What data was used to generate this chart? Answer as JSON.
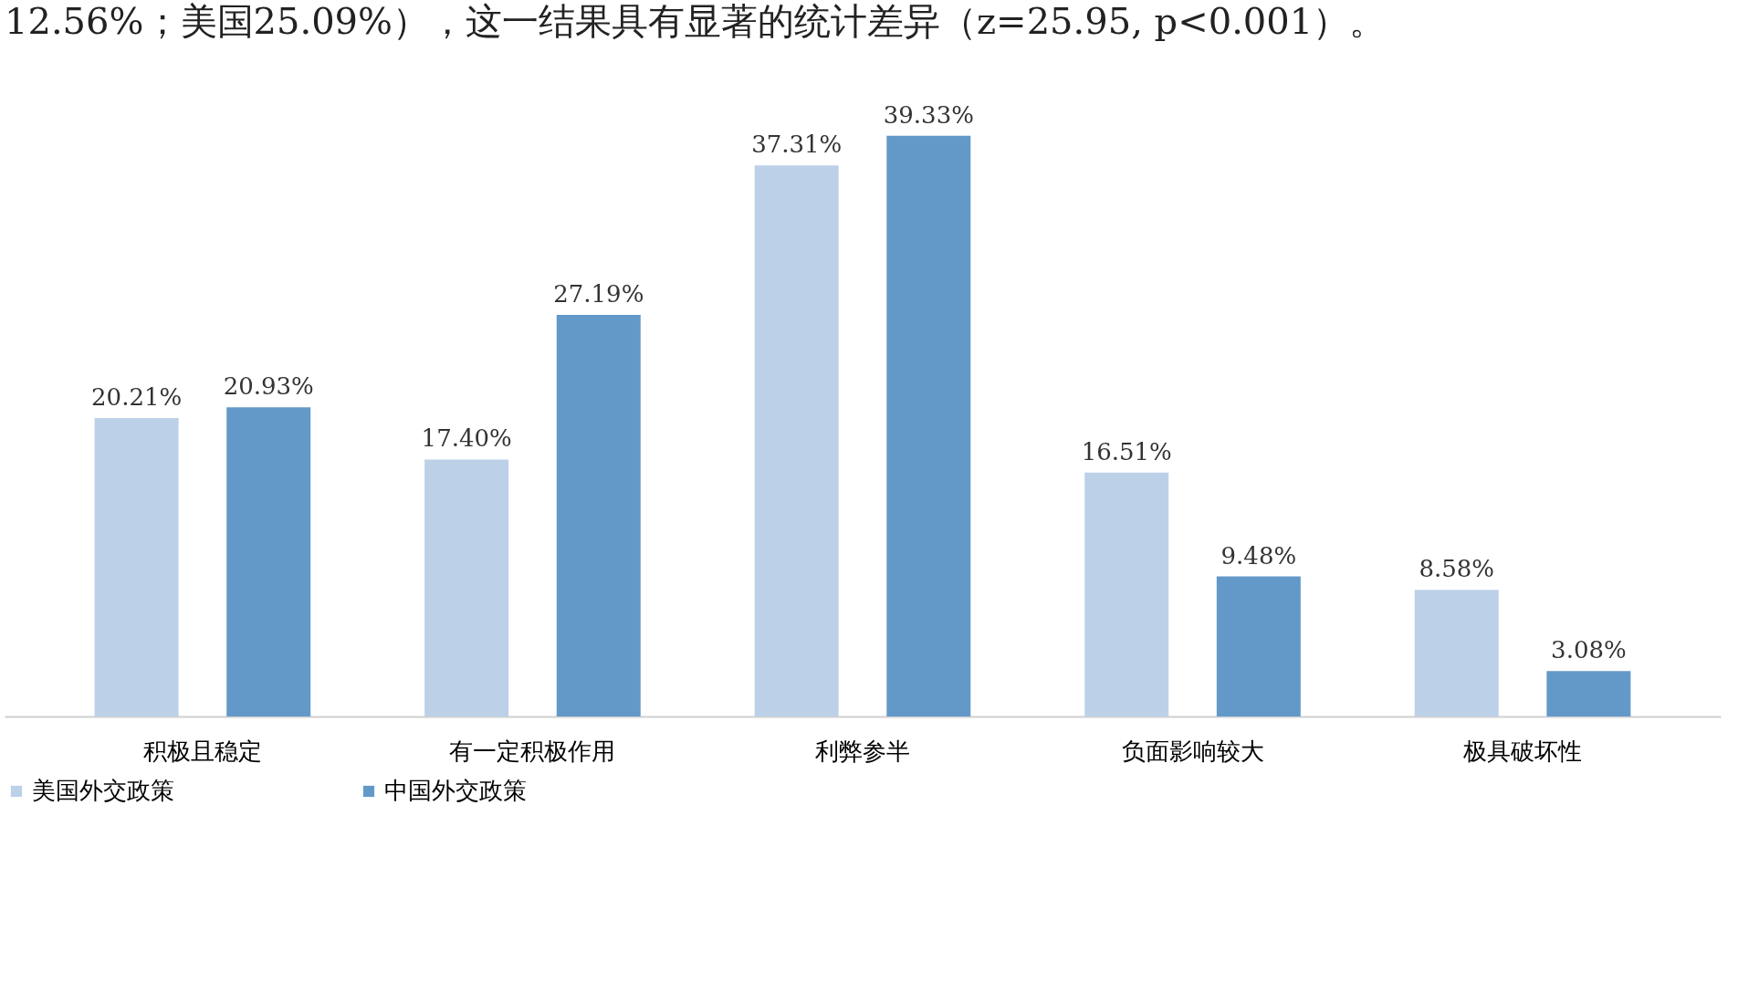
{
  "chart_data": {
    "type": "bar",
    "annotations": [
      "12.56%；美国25.09%），这一结果具有显著的统计差异（z=25.95, p<0.001）。"
    ],
    "categories": [
      "积极且稳定",
      "有一定积极作用",
      "利弊参半",
      "负面影响较大",
      "极具破坏性"
    ],
    "series": [
      {
        "name": "美国外交政策",
        "color": "#bcd1e8",
        "values": [
          20.21,
          17.4,
          37.31,
          16.51,
          8.58
        ],
        "value_labels": [
          "20.21%",
          "17.40%",
          "37.31%",
          "16.51%",
          "8.58%"
        ]
      },
      {
        "name": "中国外交政策",
        "color": "#6399c9",
        "values": [
          20.93,
          27.19,
          39.33,
          9.48,
          3.08
        ],
        "value_labels": [
          "20.93%",
          "27.19%",
          "39.33%",
          "9.48%",
          "3.08%"
        ]
      }
    ],
    "legend": "bottom",
    "grid": false
  }
}
